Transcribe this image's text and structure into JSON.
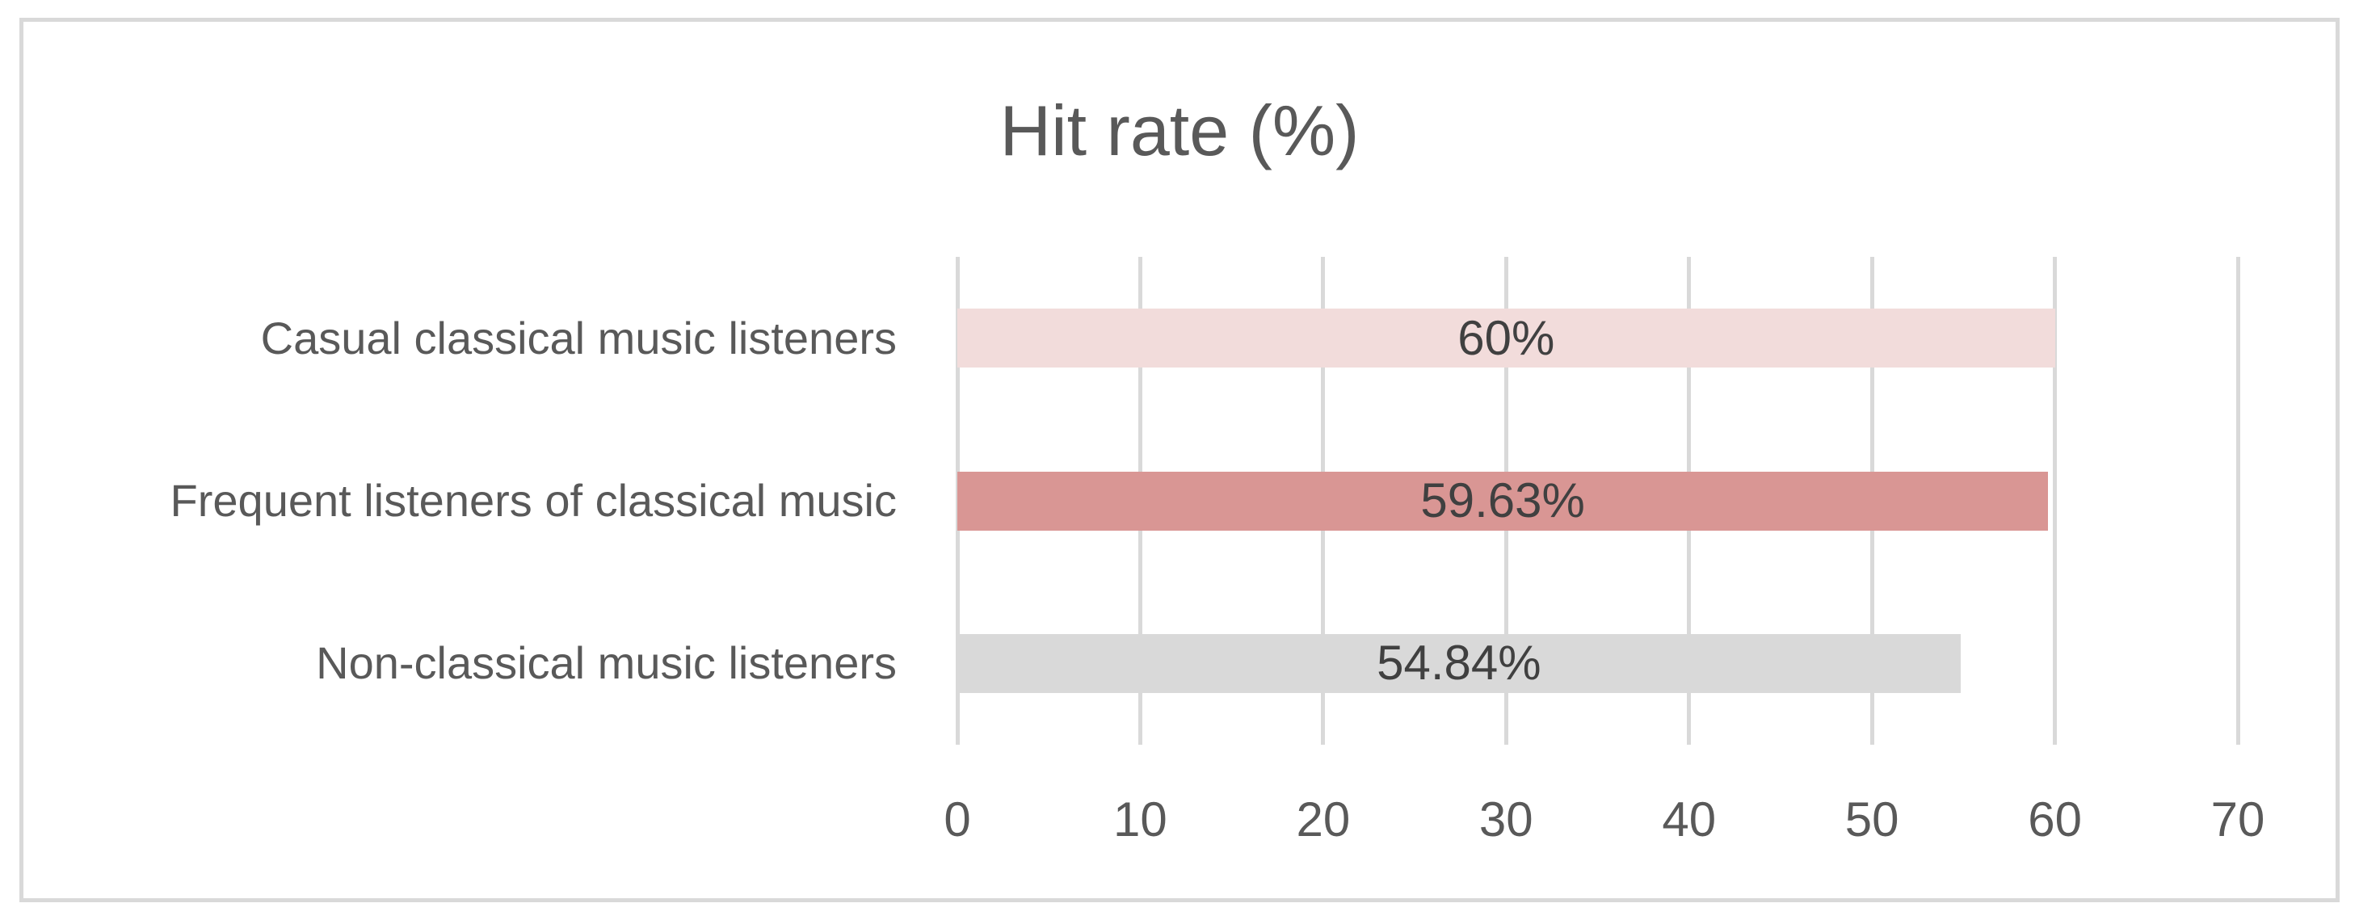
{
  "chart_data": {
    "type": "bar",
    "orientation": "horizontal",
    "title": "Hit rate (%)",
    "categories": [
      "Casual classical music listeners",
      "Frequent listeners of classical music",
      "Non-classical music listeners"
    ],
    "values": [
      60,
      59.63,
      54.84
    ],
    "value_labels": [
      "60%",
      "59.63%",
      "54.84%"
    ],
    "bar_colors": [
      "#f2dcdb",
      "#d99694",
      "#d9d9d9"
    ],
    "xlim": [
      0,
      70
    ],
    "xticks": [
      0,
      10,
      20,
      30,
      40,
      50,
      60,
      70
    ],
    "grid": true,
    "legend": "none",
    "data_label_position": "center",
    "colors": {
      "background": "#ffffff",
      "frame_border": "#d9d9d9",
      "gridline": "#d9d9d9",
      "title_text": "#595959",
      "axis_text": "#595959",
      "category_text": "#595959",
      "data_label_text": "#404040"
    }
  }
}
